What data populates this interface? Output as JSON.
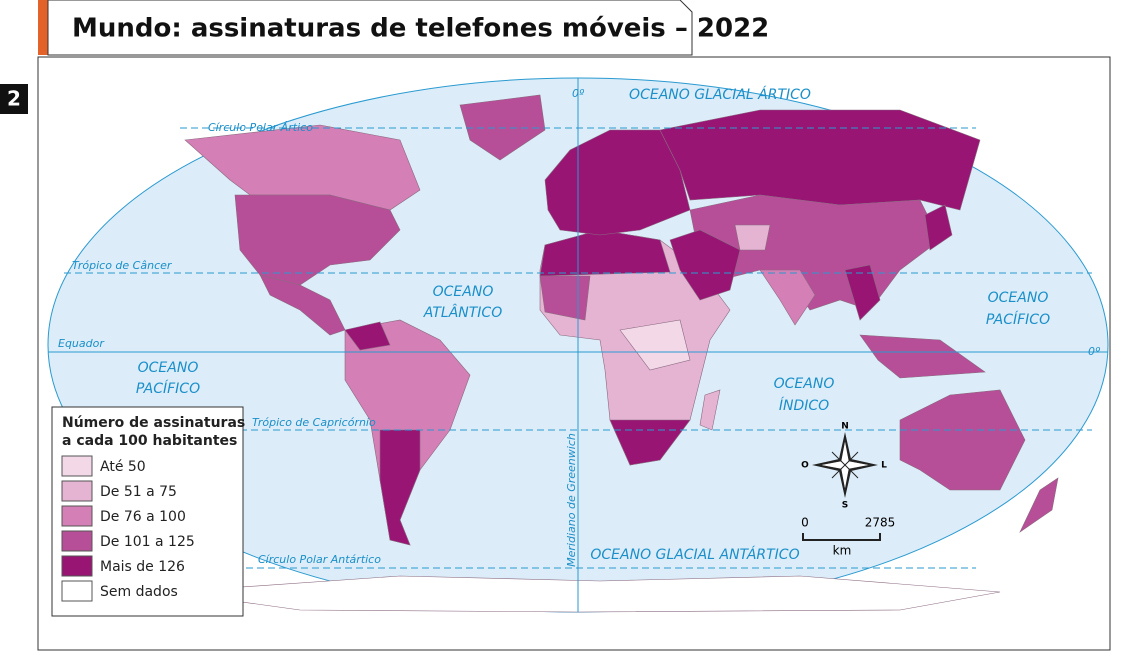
{
  "badge": "2",
  "title": "Mundo: assinaturas de telefones móveis – 2022",
  "map": {
    "lines": {
      "arctic_circle": "Círculo Polar Ártico",
      "cancer": "Trópico de Câncer",
      "equator": "Equador",
      "capricorn": "Trópico de Capricórnio",
      "antarctic_circle": "Círculo Polar Antártico",
      "greenwich": "Meridiano de Greenwich",
      "zero_top": "0º",
      "zero_right": "0º"
    },
    "oceans": {
      "arctic": "OCEANO GLACIAL ÁRTICO",
      "atlantic": [
        "OCEANO",
        "ATLÂNTICO"
      ],
      "pacific_west": [
        "OCEANO",
        "PACÍFICO"
      ],
      "pacific_east": [
        "OCEANO",
        "PACÍFICO"
      ],
      "indian": [
        "OCEANO",
        "ÍNDICO"
      ],
      "antarctic": "OCEANO GLACIAL ANTÁRTICO"
    }
  },
  "legend": {
    "title": [
      "Número de assinaturas",
      "a cada 100 habitantes"
    ],
    "items": [
      {
        "label": "Até 50",
        "color": "#f3d8e8"
      },
      {
        "label": "De 51 a 75",
        "color": "#e5b4d3"
      },
      {
        "label": "De 76 a 100",
        "color": "#d47fb5"
      },
      {
        "label": "De 101 a 125",
        "color": "#b64f97"
      },
      {
        "label": "Mais de 126",
        "color": "#981574"
      },
      {
        "label": "Sem dados",
        "color": "#ffffff"
      }
    ]
  },
  "compass": {
    "n": "N",
    "s": "S",
    "w": "O",
    "e": "L"
  },
  "scale": {
    "start": "0",
    "end": "2785",
    "unit": "km"
  }
}
